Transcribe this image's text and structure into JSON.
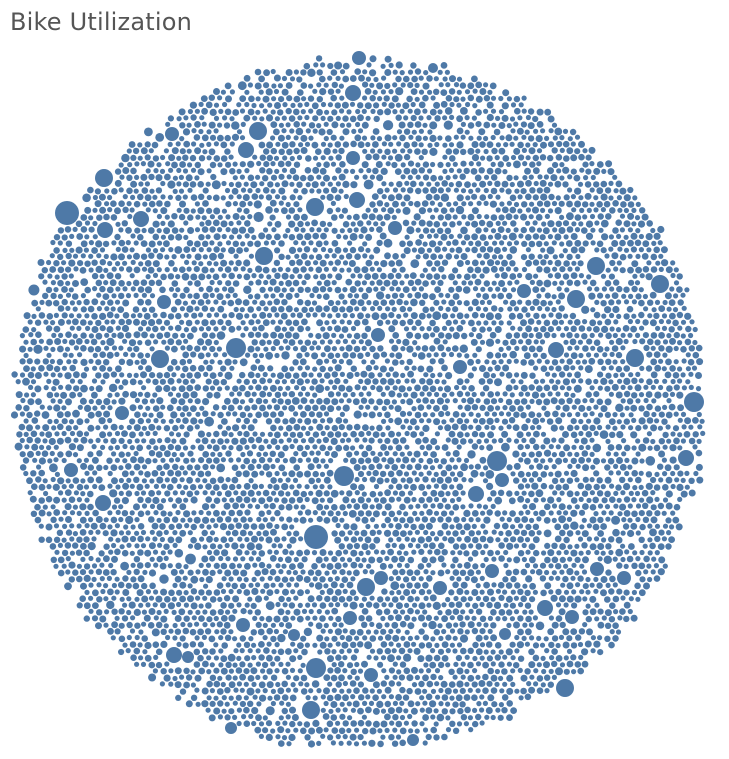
{
  "chart_data": {
    "type": "scatter",
    "subtype": "packed-bubble",
    "title": "Bike Utilization",
    "xlabel": "",
    "ylabel": "",
    "grid": false,
    "legend": "none",
    "colors": {
      "bubble": "#4e79a7",
      "title": "#555555",
      "background": "#ffffff"
    }
  }
}
